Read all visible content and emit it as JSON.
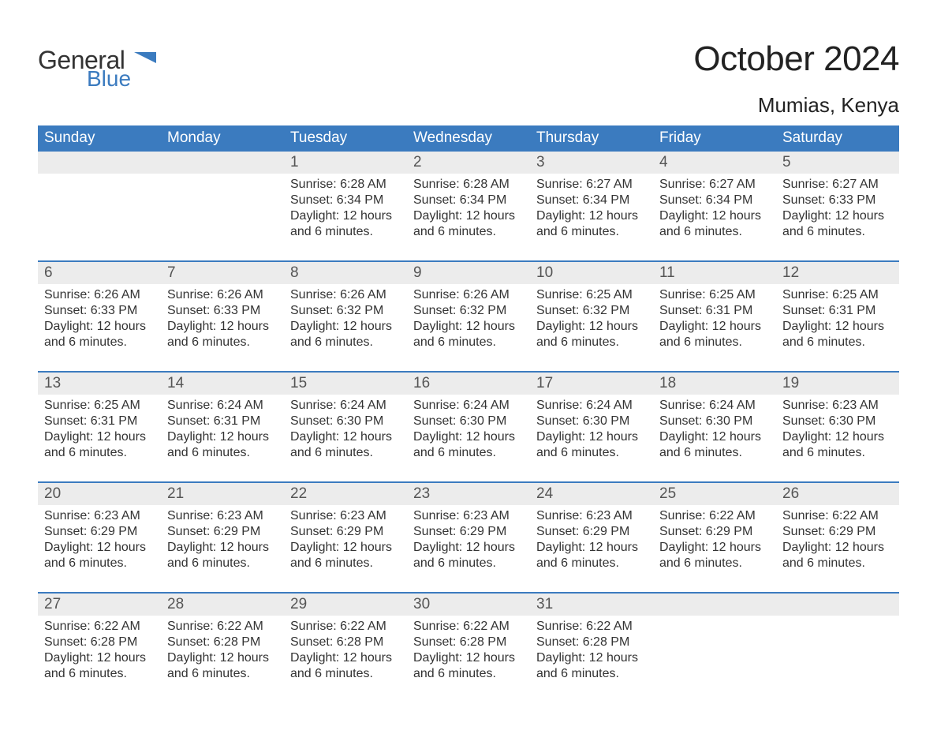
{
  "logo": {
    "general": "General",
    "blue": "Blue",
    "flag_color": "#3b7bbf"
  },
  "title": "October 2024",
  "location": "Mumias, Kenya",
  "colors": {
    "header_bg": "#3b7bbf",
    "header_text": "#ffffff",
    "daynum_bg": "#ececec",
    "border": "#3b7bbf",
    "body_text": "#333333"
  },
  "fonts": {
    "title_size": 44,
    "location_size": 26,
    "dow_size": 19,
    "daynum_size": 19,
    "cell_size": 16
  },
  "days_of_week": [
    "Sunday",
    "Monday",
    "Tuesday",
    "Wednesday",
    "Thursday",
    "Friday",
    "Saturday"
  ],
  "labels": {
    "sunrise": "Sunrise: ",
    "sunset": "Sunset: ",
    "daylight": "Daylight: "
  },
  "daylight_text": "12 hours and 6 minutes.",
  "weeks": [
    [
      {
        "day": "",
        "sunrise": "",
        "sunset": ""
      },
      {
        "day": "",
        "sunrise": "",
        "sunset": ""
      },
      {
        "day": "1",
        "sunrise": "6:28 AM",
        "sunset": "6:34 PM"
      },
      {
        "day": "2",
        "sunrise": "6:28 AM",
        "sunset": "6:34 PM"
      },
      {
        "day": "3",
        "sunrise": "6:27 AM",
        "sunset": "6:34 PM"
      },
      {
        "day": "4",
        "sunrise": "6:27 AM",
        "sunset": "6:34 PM"
      },
      {
        "day": "5",
        "sunrise": "6:27 AM",
        "sunset": "6:33 PM"
      }
    ],
    [
      {
        "day": "6",
        "sunrise": "6:26 AM",
        "sunset": "6:33 PM"
      },
      {
        "day": "7",
        "sunrise": "6:26 AM",
        "sunset": "6:33 PM"
      },
      {
        "day": "8",
        "sunrise": "6:26 AM",
        "sunset": "6:32 PM"
      },
      {
        "day": "9",
        "sunrise": "6:26 AM",
        "sunset": "6:32 PM"
      },
      {
        "day": "10",
        "sunrise": "6:25 AM",
        "sunset": "6:32 PM"
      },
      {
        "day": "11",
        "sunrise": "6:25 AM",
        "sunset": "6:31 PM"
      },
      {
        "day": "12",
        "sunrise": "6:25 AM",
        "sunset": "6:31 PM"
      }
    ],
    [
      {
        "day": "13",
        "sunrise": "6:25 AM",
        "sunset": "6:31 PM"
      },
      {
        "day": "14",
        "sunrise": "6:24 AM",
        "sunset": "6:31 PM"
      },
      {
        "day": "15",
        "sunrise": "6:24 AM",
        "sunset": "6:30 PM"
      },
      {
        "day": "16",
        "sunrise": "6:24 AM",
        "sunset": "6:30 PM"
      },
      {
        "day": "17",
        "sunrise": "6:24 AM",
        "sunset": "6:30 PM"
      },
      {
        "day": "18",
        "sunrise": "6:24 AM",
        "sunset": "6:30 PM"
      },
      {
        "day": "19",
        "sunrise": "6:23 AM",
        "sunset": "6:30 PM"
      }
    ],
    [
      {
        "day": "20",
        "sunrise": "6:23 AM",
        "sunset": "6:29 PM"
      },
      {
        "day": "21",
        "sunrise": "6:23 AM",
        "sunset": "6:29 PM"
      },
      {
        "day": "22",
        "sunrise": "6:23 AM",
        "sunset": "6:29 PM"
      },
      {
        "day": "23",
        "sunrise": "6:23 AM",
        "sunset": "6:29 PM"
      },
      {
        "day": "24",
        "sunrise": "6:23 AM",
        "sunset": "6:29 PM"
      },
      {
        "day": "25",
        "sunrise": "6:22 AM",
        "sunset": "6:29 PM"
      },
      {
        "day": "26",
        "sunrise": "6:22 AM",
        "sunset": "6:29 PM"
      }
    ],
    [
      {
        "day": "27",
        "sunrise": "6:22 AM",
        "sunset": "6:28 PM"
      },
      {
        "day": "28",
        "sunrise": "6:22 AM",
        "sunset": "6:28 PM"
      },
      {
        "day": "29",
        "sunrise": "6:22 AM",
        "sunset": "6:28 PM"
      },
      {
        "day": "30",
        "sunrise": "6:22 AM",
        "sunset": "6:28 PM"
      },
      {
        "day": "31",
        "sunrise": "6:22 AM",
        "sunset": "6:28 PM"
      },
      {
        "day": "",
        "sunrise": "",
        "sunset": ""
      },
      {
        "day": "",
        "sunrise": "",
        "sunset": ""
      }
    ]
  ]
}
